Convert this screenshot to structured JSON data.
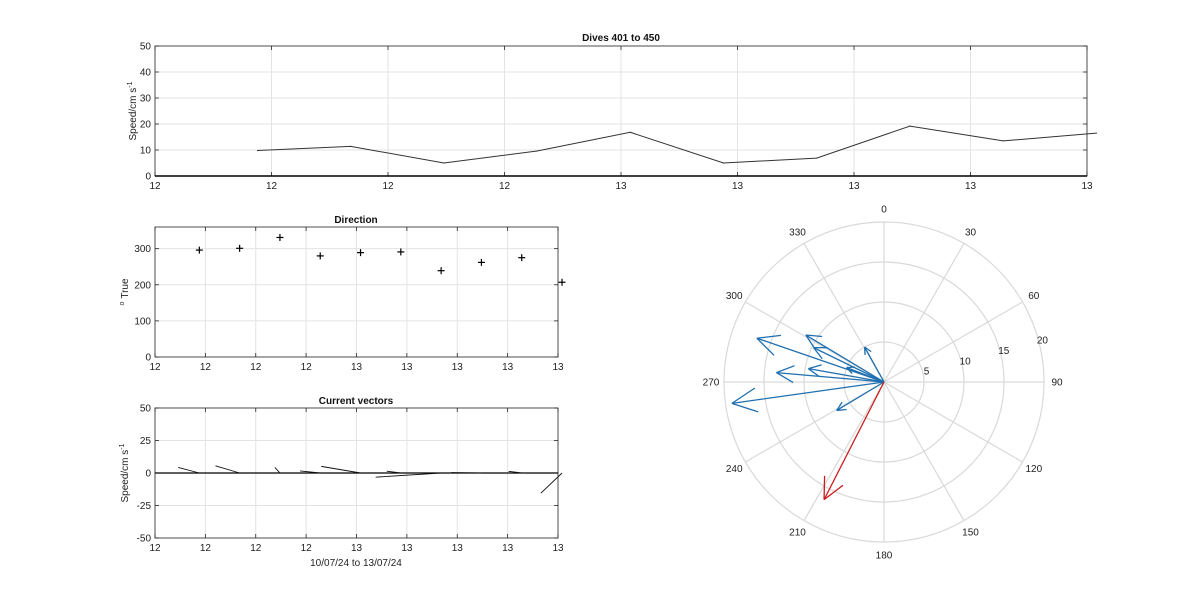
{
  "colors": {
    "blue": "#1f6fb0",
    "red": "#cc1a1a",
    "line": "#333333",
    "grid": "#e3e3e3"
  },
  "chart_data": [
    {
      "type": "line",
      "title": "Dives 401 to 450",
      "ylabel": "Speed/cm s",
      "ylabel_sup": "-1",
      "ylim": [
        0,
        50
      ],
      "yticks": [
        0,
        10,
        20,
        30,
        40,
        50
      ],
      "xlim": [
        0,
        8
      ],
      "xtick_labels": [
        "12",
        "12",
        "12",
        "12",
        "13",
        "13",
        "13",
        "13",
        "13"
      ],
      "x": [
        0.88,
        1.68,
        2.48,
        3.28,
        4.08,
        4.88,
        5.68,
        6.48,
        7.28,
        8.08
      ],
      "values": [
        9.8,
        11.4,
        5.0,
        9.6,
        16.8,
        5.0,
        6.9,
        19.2,
        13.5,
        16.5
      ]
    },
    {
      "type": "scatter",
      "title": "Direction",
      "ylabel": "o True",
      "ylabel_sup": "o",
      "ylabel_text": "True",
      "ylim": [
        0,
        360
      ],
      "yticks": [
        0,
        100,
        200,
        300
      ],
      "xlim": [
        0,
        8
      ],
      "xtick_labels": [
        "12",
        "12",
        "12",
        "12",
        "13",
        "13",
        "13",
        "13",
        "13"
      ],
      "x": [
        0.88,
        1.68,
        2.48,
        3.28,
        4.08,
        4.88,
        5.68,
        6.48,
        7.28,
        8.08
      ],
      "values": [
        296,
        301,
        331,
        280,
        289,
        291,
        239,
        262,
        275,
        207
      ]
    },
    {
      "type": "line",
      "title": "Current vectors",
      "ylabel": "Speed/cm s",
      "ylabel_sup": "-1",
      "ylim": [
        -50,
        50
      ],
      "yticks": [
        -50,
        -25,
        0,
        25,
        50
      ],
      "xlim": [
        0,
        8
      ],
      "xtick_labels": [
        "12",
        "12",
        "12",
        "12",
        "13",
        "13",
        "13",
        "13",
        "13"
      ],
      "xlabel": "10/07/24 to 13/07/24",
      "vectors": [
        {
          "x": 0.88,
          "dx": -0.42,
          "dy": 4.3
        },
        {
          "x": 1.68,
          "dx": -0.48,
          "dy": 5.5
        },
        {
          "x": 2.48,
          "dx": -0.1,
          "dy": 4.3
        },
        {
          "x": 3.28,
          "dx": -0.4,
          "dy": 1.6
        },
        {
          "x": 4.08,
          "dx": -0.78,
          "dy": 5.1
        },
        {
          "x": 4.88,
          "dx": -0.28,
          "dy": 1.4
        },
        {
          "x": 5.68,
          "dx": -1.3,
          "dy": -3.2
        },
        {
          "x": 6.48,
          "dx": -0.6,
          "dy": 0.3
        },
        {
          "x": 7.28,
          "dx": -0.26,
          "dy": 1.3
        },
        {
          "x": 8.08,
          "dx": -0.42,
          "dy": -15.5
        }
      ]
    },
    {
      "type": "polar-compass",
      "rlim": [
        0,
        20
      ],
      "rtick_labels": [
        "5",
        "10",
        "15",
        "20"
      ],
      "theta_labels": [
        "0",
        "30",
        "60",
        "90",
        "120",
        "150",
        "180",
        "210",
        "240",
        "270",
        "300",
        "330"
      ],
      "arrows_blue": [
        {
          "direction": 296,
          "speed": 9.8
        },
        {
          "direction": 301,
          "speed": 11.4
        },
        {
          "direction": 331,
          "speed": 5.0
        },
        {
          "direction": 280,
          "speed": 9.6
        },
        {
          "direction": 289,
          "speed": 16.8
        },
        {
          "direction": 291,
          "speed": 5.0
        },
        {
          "direction": 239,
          "speed": 6.9
        },
        {
          "direction": 262,
          "speed": 19.2
        },
        {
          "direction": 275,
          "speed": 13.5
        }
      ],
      "arrow_red": {
        "direction": 207,
        "speed": 16.5
      }
    }
  ]
}
